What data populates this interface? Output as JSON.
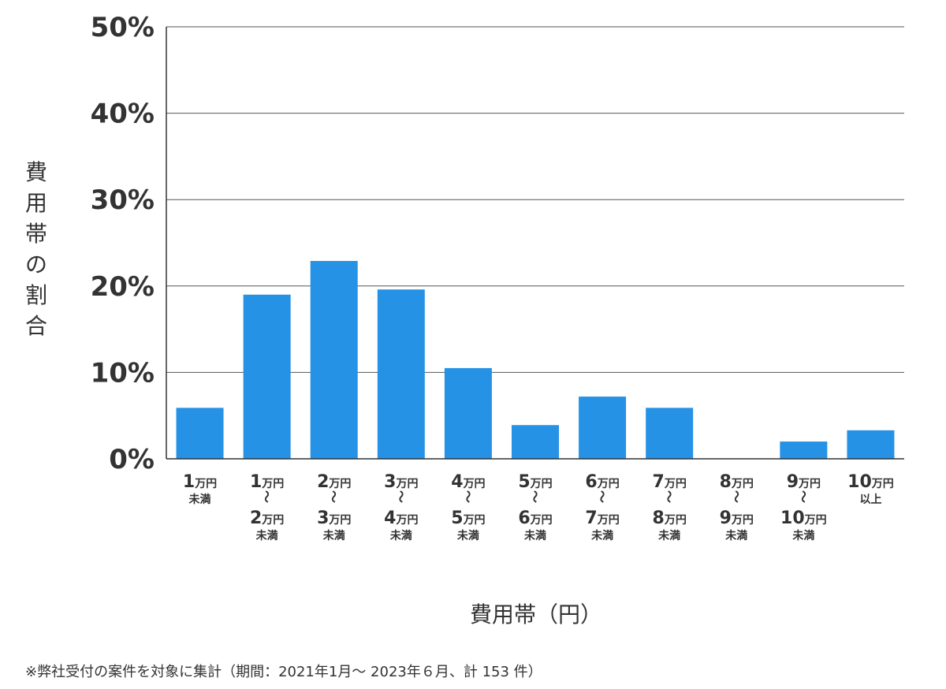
{
  "chart_data": {
    "type": "bar",
    "ylabel": "費用帯の割合",
    "xlabel": "費用帯（円）",
    "ylim": [
      0,
      50
    ],
    "yticks": [
      "0%",
      "10%",
      "20%",
      "30%",
      "40%",
      "50%"
    ],
    "grid": true,
    "bar_color": "#2592e6",
    "categories": [
      {
        "label_lines": [
          "1万円",
          "未満"
        ]
      },
      {
        "label_lines": [
          "1万円",
          "〜",
          "2万円",
          "未満"
        ]
      },
      {
        "label_lines": [
          "2万円",
          "〜",
          "3万円",
          "未満"
        ]
      },
      {
        "label_lines": [
          "3万円",
          "〜",
          "4万円",
          "未満"
        ]
      },
      {
        "label_lines": [
          "4万円",
          "〜",
          "5万円",
          "未満"
        ]
      },
      {
        "label_lines": [
          "5万円",
          "〜",
          "6万円",
          "未満"
        ]
      },
      {
        "label_lines": [
          "6万円",
          "〜",
          "7万円",
          "未満"
        ]
      },
      {
        "label_lines": [
          "7万円",
          "〜",
          "8万円",
          "未満"
        ]
      },
      {
        "label_lines": [
          "8万円",
          "〜",
          "9万円",
          "未満"
        ]
      },
      {
        "label_lines": [
          "9万円",
          "〜",
          "10万円",
          "未満"
        ]
      },
      {
        "label_lines": [
          "10万円",
          "以上"
        ]
      }
    ],
    "values": [
      5.9,
      19.0,
      22.9,
      19.6,
      10.5,
      3.9,
      7.2,
      5.9,
      0,
      2.0,
      3.3
    ],
    "footnote": "※弊社受付の案件を対象に集計（期間：2021年1月～ 2023年６月、計 153 件）"
  }
}
